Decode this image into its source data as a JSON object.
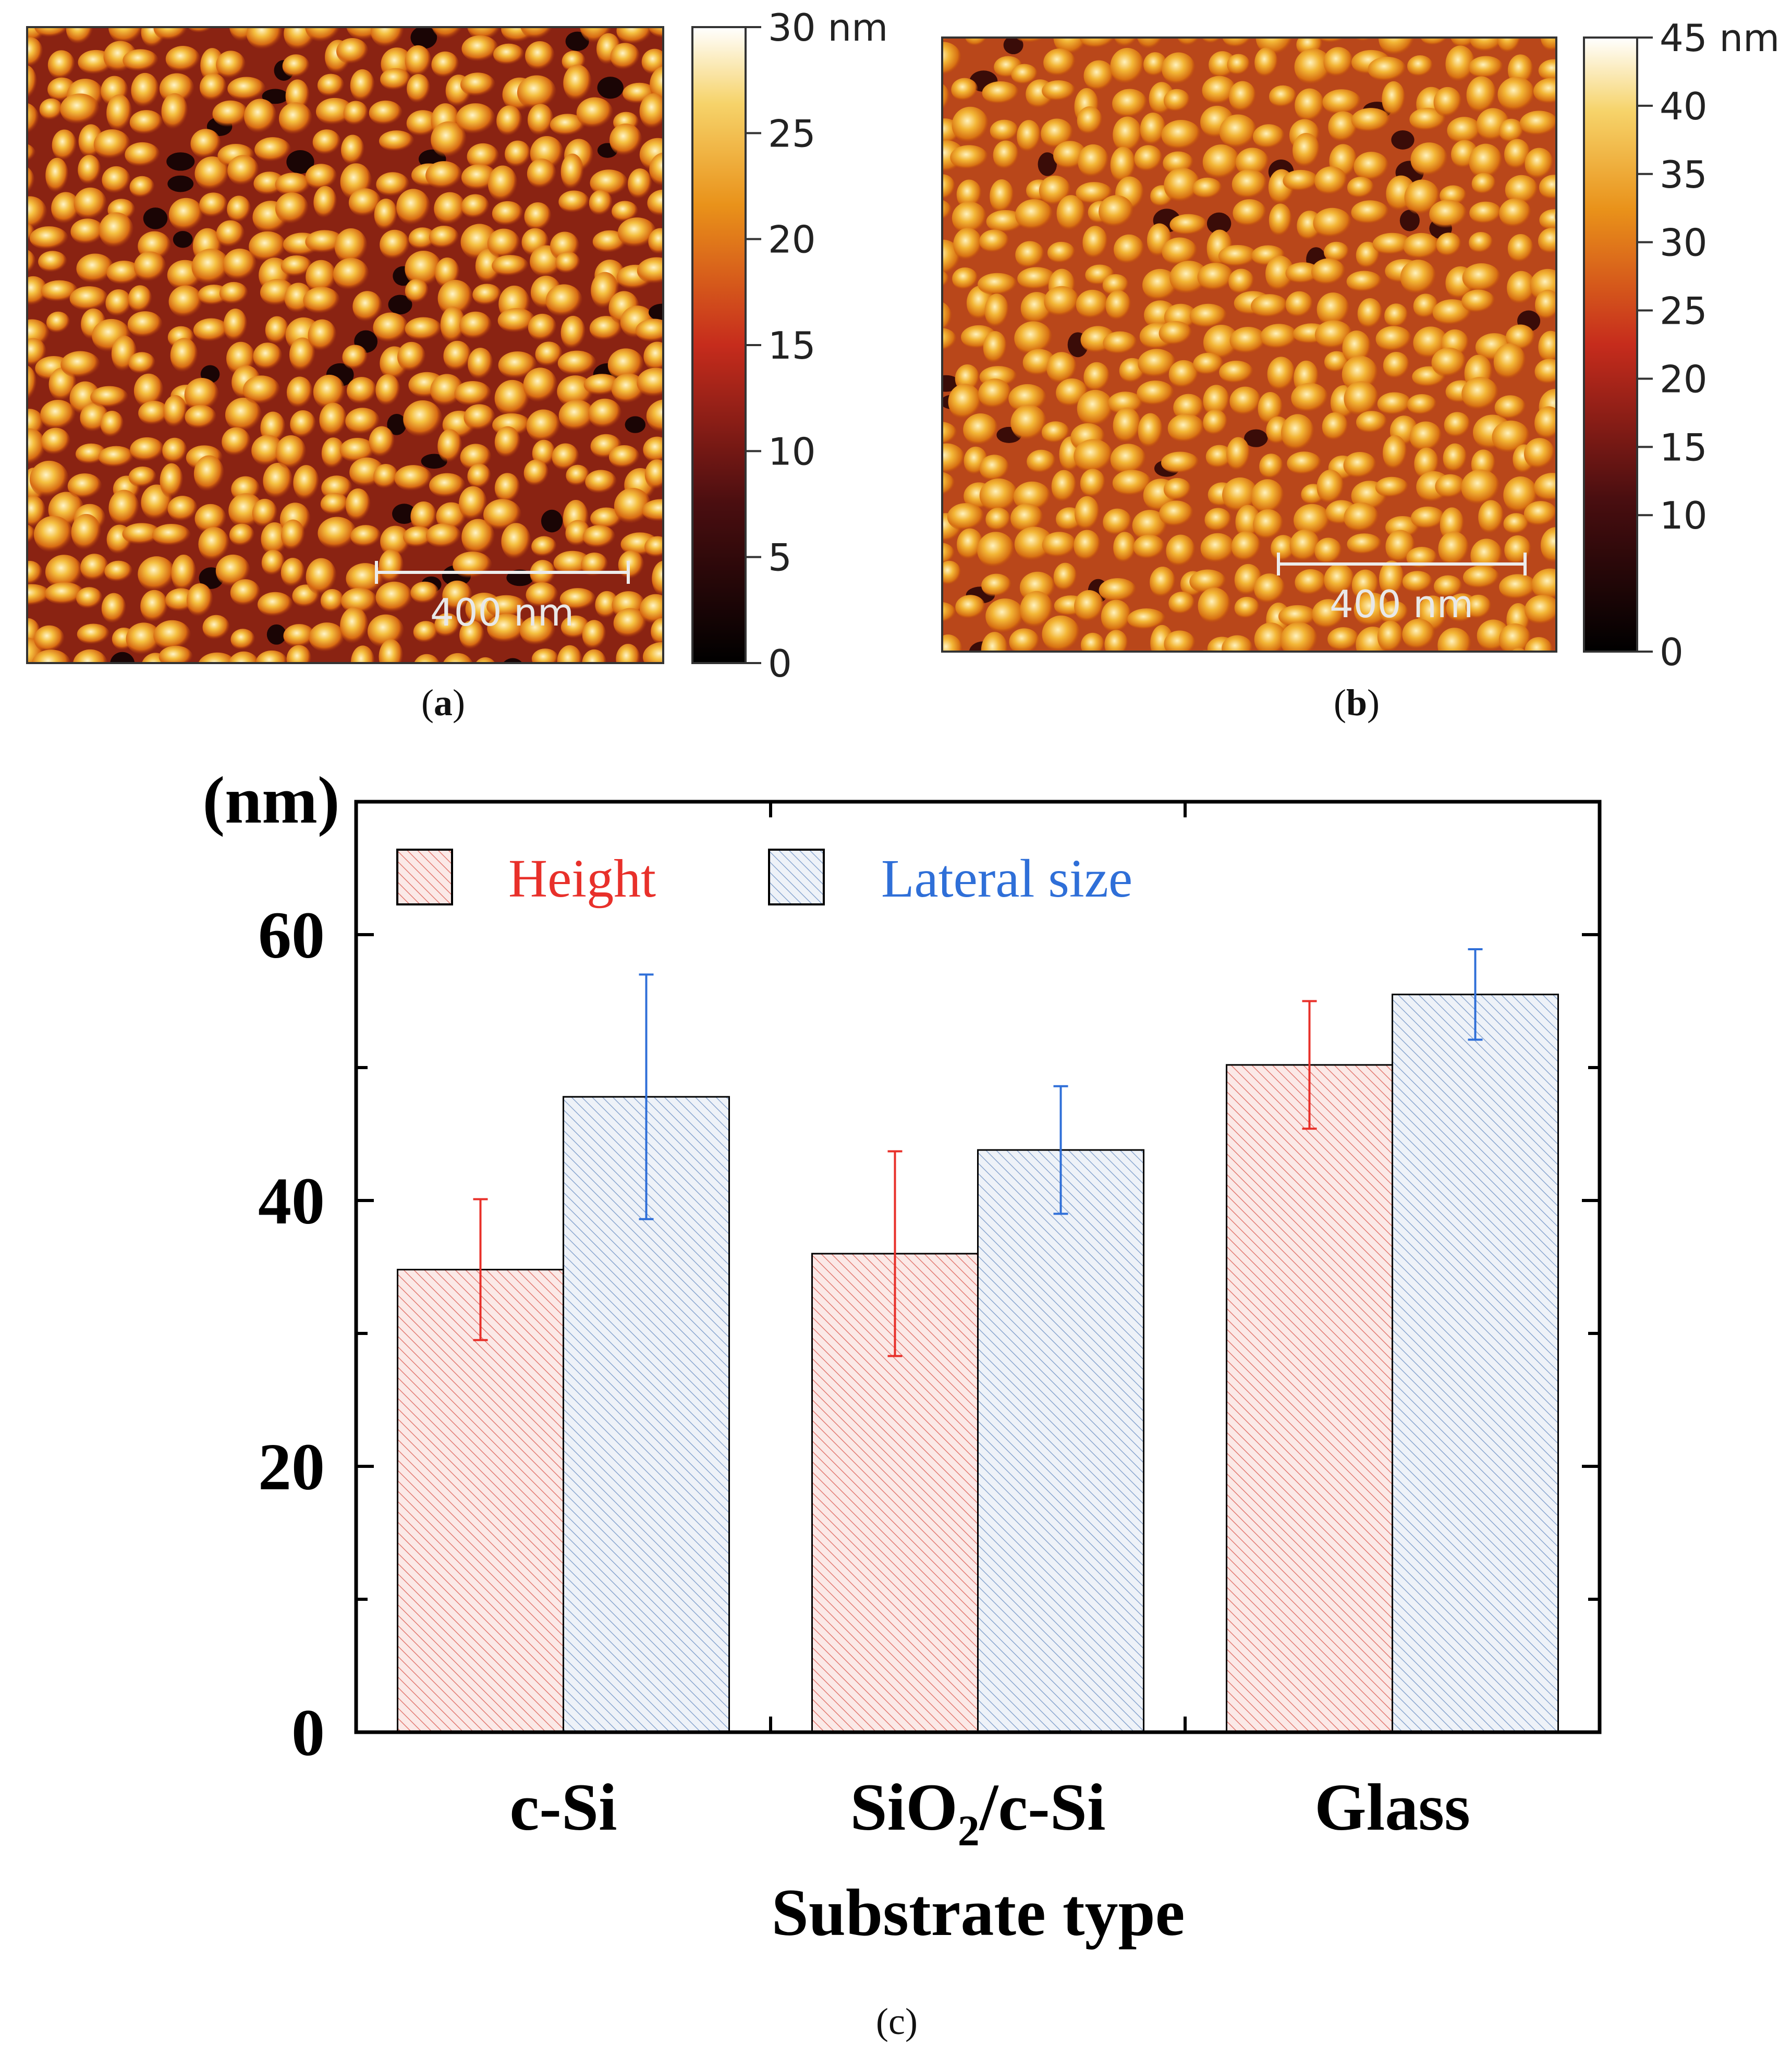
{
  "panels": {
    "a": {
      "label_open": "(",
      "label_letter": "a",
      "label_close": ")",
      "scale_bar": "400 nm",
      "colorbar_ticks": [
        "30 nm",
        "25",
        "20",
        "15",
        "10",
        "5",
        "0"
      ],
      "colorbar_values": [
        30,
        25,
        20,
        15,
        10,
        5,
        0
      ],
      "colorbar_max": 30
    },
    "b": {
      "label_open": "(",
      "label_letter": "b",
      "label_close": ")",
      "scale_bar": "400 nm",
      "colorbar_ticks": [
        "45 nm",
        "40",
        "35",
        "30",
        "25",
        "20",
        "15",
        "10",
        "0"
      ],
      "colorbar_values": [
        45,
        40,
        35,
        30,
        25,
        20,
        15,
        10,
        0
      ],
      "colorbar_max": 45
    },
    "c": {
      "label": "(c)"
    }
  },
  "colors": {
    "height": "#e8302a",
    "lateral": "#2f6fd8",
    "height_fill": "#f7dad8",
    "lateral_fill": "#dde6f3"
  },
  "chart_data": {
    "type": "bar",
    "title": "",
    "unit_label": "(nm)",
    "xlabel": "Substrate type",
    "ylabel": "(nm)",
    "ylim": [
      0,
      70
    ],
    "yticks": [
      0,
      20,
      40,
      60
    ],
    "ytick_labels": [
      "0",
      "20",
      "40",
      "60"
    ],
    "categories": [
      "c-Si",
      "SiO2/c-Si",
      "Glass"
    ],
    "category_parts": [
      {
        "main": "c-Si",
        "pre": "",
        "sub": "",
        "post": ""
      },
      {
        "main": "",
        "pre": "SiO",
        "sub": "2",
        "post": "/c-Si"
      },
      {
        "main": "Glass",
        "pre": "",
        "sub": "",
        "post": ""
      }
    ],
    "legend_position": "top-left",
    "series": [
      {
        "name": "Height",
        "values": [
          34.8,
          36.0,
          50.2
        ],
        "errors": [
          5.3,
          7.7,
          4.8
        ]
      },
      {
        "name": "Lateral size",
        "values": [
          47.8,
          43.8,
          55.5
        ],
        "errors": [
          9.2,
          4.8,
          3.4
        ]
      }
    ]
  }
}
